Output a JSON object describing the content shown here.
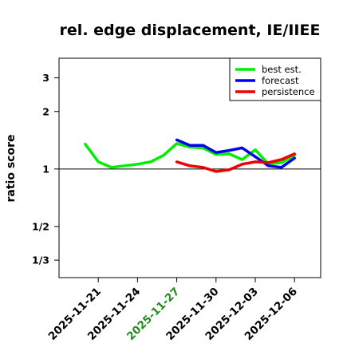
{
  "chart_data": {
    "type": "line",
    "title": "rel. edge displacement, IE/IIEE",
    "xlabel": "",
    "ylabel": "ratio score",
    "y_scale": "log",
    "ylim": [
      0.27,
      3.8
    ],
    "y_ticks": [
      {
        "value": 3,
        "label": "3"
      },
      {
        "value": 2,
        "label": "2"
      },
      {
        "value": 1,
        "label": "1"
      },
      {
        "value": 0.5,
        "label": "1/2"
      },
      {
        "value": 0.3333,
        "label": "1/3"
      }
    ],
    "reference_line": 1,
    "x_ticks": [
      {
        "date": "2025-11-21",
        "label": "2025-11-21",
        "color": "#000000"
      },
      {
        "date": "2025-11-24",
        "label": "2025-11-24",
        "color": "#000000"
      },
      {
        "date": "2025-11-27",
        "label": "2025-11-27",
        "color": "#228B22"
      },
      {
        "date": "2025-11-30",
        "label": "2025-11-30",
        "color": "#000000"
      },
      {
        "date": "2025-12-03",
        "label": "2025-12-03",
        "color": "#000000"
      },
      {
        "date": "2025-12-06",
        "label": "2025-12-06",
        "color": "#000000"
      }
    ],
    "xlim": [
      "2025-11-18",
      "2025-12-08"
    ],
    "legend": "top-right",
    "series": [
      {
        "name": "best est.",
        "color": "#00EE00",
        "points": [
          {
            "x": "2025-11-20",
            "y": 1.35
          },
          {
            "x": "2025-11-21",
            "y": 1.09
          },
          {
            "x": "2025-11-22",
            "y": 1.02
          },
          {
            "x": "2025-11-23",
            "y": 1.04
          },
          {
            "x": "2025-11-24",
            "y": 1.06
          },
          {
            "x": "2025-11-25",
            "y": 1.09
          },
          {
            "x": "2025-11-26",
            "y": 1.18
          },
          {
            "x": "2025-11-27",
            "y": 1.36
          },
          {
            "x": "2025-11-28",
            "y": 1.3
          },
          {
            "x": "2025-11-29",
            "y": 1.29
          },
          {
            "x": "2025-11-30",
            "y": 1.19
          },
          {
            "x": "2025-12-01",
            "y": 1.2
          },
          {
            "x": "2025-12-02",
            "y": 1.12
          },
          {
            "x": "2025-12-03",
            "y": 1.26
          },
          {
            "x": "2025-12-04",
            "y": 1.06
          },
          {
            "x": "2025-12-05",
            "y": 1.08
          },
          {
            "x": "2025-12-06",
            "y": 1.18
          }
        ]
      },
      {
        "name": "forecast",
        "color": "#0000EE",
        "points": [
          {
            "x": "2025-11-27",
            "y": 1.42
          },
          {
            "x": "2025-11-28",
            "y": 1.33
          },
          {
            "x": "2025-11-29",
            "y": 1.33
          },
          {
            "x": "2025-11-30",
            "y": 1.22
          },
          {
            "x": "2025-12-01",
            "y": 1.25
          },
          {
            "x": "2025-12-02",
            "y": 1.29
          },
          {
            "x": "2025-12-03",
            "y": 1.16
          },
          {
            "x": "2025-12-04",
            "y": 1.04
          },
          {
            "x": "2025-12-05",
            "y": 1.02
          },
          {
            "x": "2025-12-06",
            "y": 1.14
          }
        ]
      },
      {
        "name": "persistence",
        "color": "#EE0000",
        "points": [
          {
            "x": "2025-11-27",
            "y": 1.09
          },
          {
            "x": "2025-11-28",
            "y": 1.04
          },
          {
            "x": "2025-11-29",
            "y": 1.02
          },
          {
            "x": "2025-11-30",
            "y": 0.97
          },
          {
            "x": "2025-12-01",
            "y": 0.99
          },
          {
            "x": "2025-12-02",
            "y": 1.06
          },
          {
            "x": "2025-12-03",
            "y": 1.09
          },
          {
            "x": "2025-12-04",
            "y": 1.08
          },
          {
            "x": "2025-12-05",
            "y": 1.12
          },
          {
            "x": "2025-12-06",
            "y": 1.2
          }
        ]
      }
    ]
  }
}
